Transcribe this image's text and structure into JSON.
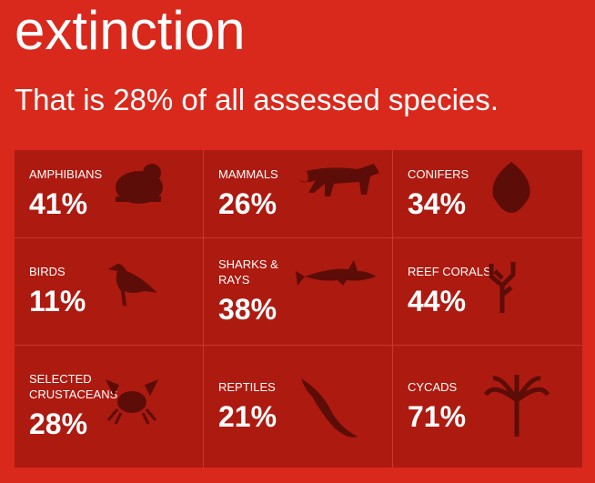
{
  "header": {
    "title": "extinction",
    "subtitle": "That is 28% of all assessed species."
  },
  "grid": {
    "cells": [
      {
        "label": "AMPHIBIANS",
        "percent": "41%"
      },
      {
        "label": "MAMMALS",
        "percent": "26%"
      },
      {
        "label": "CONIFERS",
        "percent": "34%"
      },
      {
        "label": "BIRDS",
        "percent": "11%"
      },
      {
        "label": "SHARKS & RAYS",
        "percent": "38%"
      },
      {
        "label": "REEF CORALS",
        "percent": "44%"
      },
      {
        "label": "SELECTED CRUSTACEANS",
        "percent": "28%"
      },
      {
        "label": "REPTILES",
        "percent": "21%"
      },
      {
        "label": "CYCADS",
        "percent": "71%"
      }
    ]
  }
}
